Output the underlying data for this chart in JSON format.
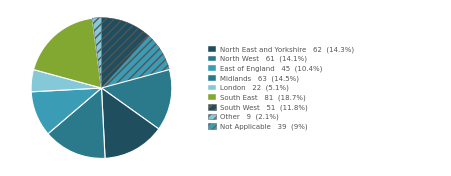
{
  "labels": [
    "North East and Yorkshire",
    "North West",
    "East of England",
    "Midlands",
    "London",
    "South East",
    "South West",
    "Other",
    "Not Applicable"
  ],
  "counts": [
    62,
    61,
    45,
    63,
    22,
    81,
    51,
    9,
    39
  ],
  "percentages": [
    "14.3%",
    "14.1%",
    "10.4%",
    "14.5%",
    "5.1%",
    "18.7%",
    "11.8%",
    "2.1%",
    "9%"
  ],
  "pie_colors": [
    "#1F4E5F",
    "#2A7A8C",
    "#3A9CB5",
    "#2A7A8C",
    "#85C8D8",
    "#82A832",
    "#1F4E5F",
    "#85C8D8",
    "#3A9CB5"
  ],
  "pie_hatches": [
    "",
    "",
    "",
    "",
    "",
    "",
    "////",
    "////",
    "////"
  ],
  "pie_order": [
    6,
    8,
    1,
    0,
    3,
    2,
    4,
    5,
    7
  ],
  "legend_entries": [
    {
      "name": "North East and Yorkshire",
      "count": "62",
      "pct": "(14.3%)",
      "color": "#1F4E5F",
      "hatch": ""
    },
    {
      "name": "North West",
      "count": "61",
      "pct": "(14.1%)",
      "color": "#2A7A8C",
      "hatch": ""
    },
    {
      "name": "East of England",
      "count": "45",
      "pct": "(10.4%)",
      "color": "#3A9CB5",
      "hatch": ""
    },
    {
      "name": "Midlands",
      "count": "63",
      "pct": "(14.5%)",
      "color": "#2A7A8C",
      "hatch": ""
    },
    {
      "name": "London",
      "count": "22",
      "pct": "(5.1%)",
      "color": "#85C8D8",
      "hatch": ""
    },
    {
      "name": "South East",
      "count": "81",
      "pct": "(18.7%)",
      "color": "#82A832",
      "hatch": ""
    },
    {
      "name": "South West",
      "count": "51",
      "pct": "(11.8%)",
      "color": "#1F4E5F",
      "hatch": "////"
    },
    {
      "name": "Other",
      "count": "9",
      "pct": "(2.1%)",
      "color": "#85C8D8",
      "hatch": "////"
    },
    {
      "name": "Not Applicable",
      "count": "39",
      "pct": "(9%)",
      "color": "#3A9CB5",
      "hatch": "////"
    }
  ],
  "figsize": [
    4.51,
    1.76
  ],
  "dpi": 100,
  "bg_color": "#FFFFFF"
}
